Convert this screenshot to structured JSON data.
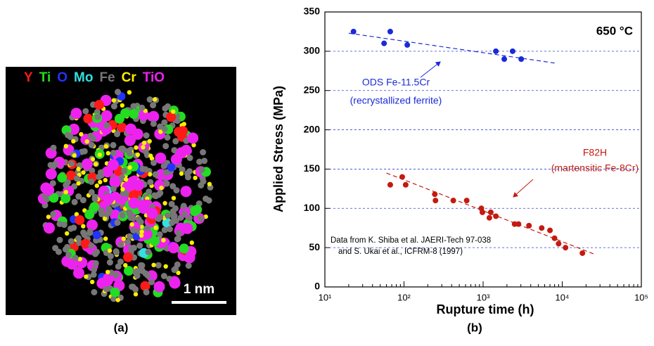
{
  "panel_a": {
    "elements": [
      {
        "label": "Y",
        "color": "#ff1a1a"
      },
      {
        "label": "Ti",
        "color": "#22dd22"
      },
      {
        "label": "O",
        "color": "#2233ff"
      },
      {
        "label": "Mo",
        "color": "#33e0e0"
      },
      {
        "label": "Fe",
        "color": "#777777"
      },
      {
        "label": "Cr",
        "color": "#ffee00"
      },
      {
        "label": "TiO",
        "color": "#ee22ee"
      }
    ],
    "scale_bar": "1 nm",
    "caption": "(a)"
  },
  "chart_data": {
    "type": "scatter",
    "caption": "(b)",
    "x_label": "Rupture time (h)",
    "y_label": "Applied Stress (MPa)",
    "log_x": true,
    "grid": true,
    "xlim": [
      10,
      100000
    ],
    "xticks": [
      {
        "value": 10,
        "label": "10¹"
      },
      {
        "value": 100,
        "label": "10²"
      },
      {
        "value": 1000,
        "label": "10³"
      },
      {
        "value": 10000,
        "label": "10⁴"
      },
      {
        "value": 100000,
        "label": "10⁵"
      }
    ],
    "ylim": [
      0,
      350
    ],
    "yticks": [
      0,
      50,
      100,
      150,
      200,
      250,
      300,
      350
    ],
    "series": [
      {
        "name": "ODS Fe-11.5Cr",
        "color": "#1a2ad8",
        "x": [
          23,
          56,
          67,
          110,
          1450,
          1850,
          2360,
          3030
        ],
        "values": [
          325,
          310,
          325,
          308,
          300,
          290,
          300,
          290
        ]
      },
      {
        "name": "F82H",
        "color": "#c41a10",
        "x": [
          67,
          95,
          105,
          245,
          250,
          420,
          620,
          950,
          980,
          1200,
          1250,
          1450,
          2500,
          2800,
          3800,
          5500,
          7000,
          8000,
          9000,
          11000,
          18000
        ],
        "values": [
          130,
          140,
          130,
          118,
          110,
          110,
          110,
          100,
          95,
          88,
          95,
          90,
          80,
          80,
          78,
          75,
          72,
          62,
          55,
          50,
          43
        ]
      }
    ],
    "trend_lines": [
      {
        "color": "#1a2ad8",
        "x": [
          20,
          8000
        ],
        "values": [
          323,
          285
        ]
      },
      {
        "color": "#c41a10",
        "x": [
          60,
          25000
        ],
        "values": [
          145,
          42
        ]
      }
    ],
    "annotations": {
      "temperature": "650 °C",
      "ods_name": "ODS Fe-11.5Cr",
      "ods_desc": "(recrystallized ferrite)",
      "f82h_name": "F82H",
      "f82h_desc": "(martensitic Fe-8Cr)",
      "source_1": "Data from K. Shiba et al. JAERI-Tech 97-038",
      "source_2": "and S. Ukai et al., ICFRM-8 (1997)"
    }
  }
}
